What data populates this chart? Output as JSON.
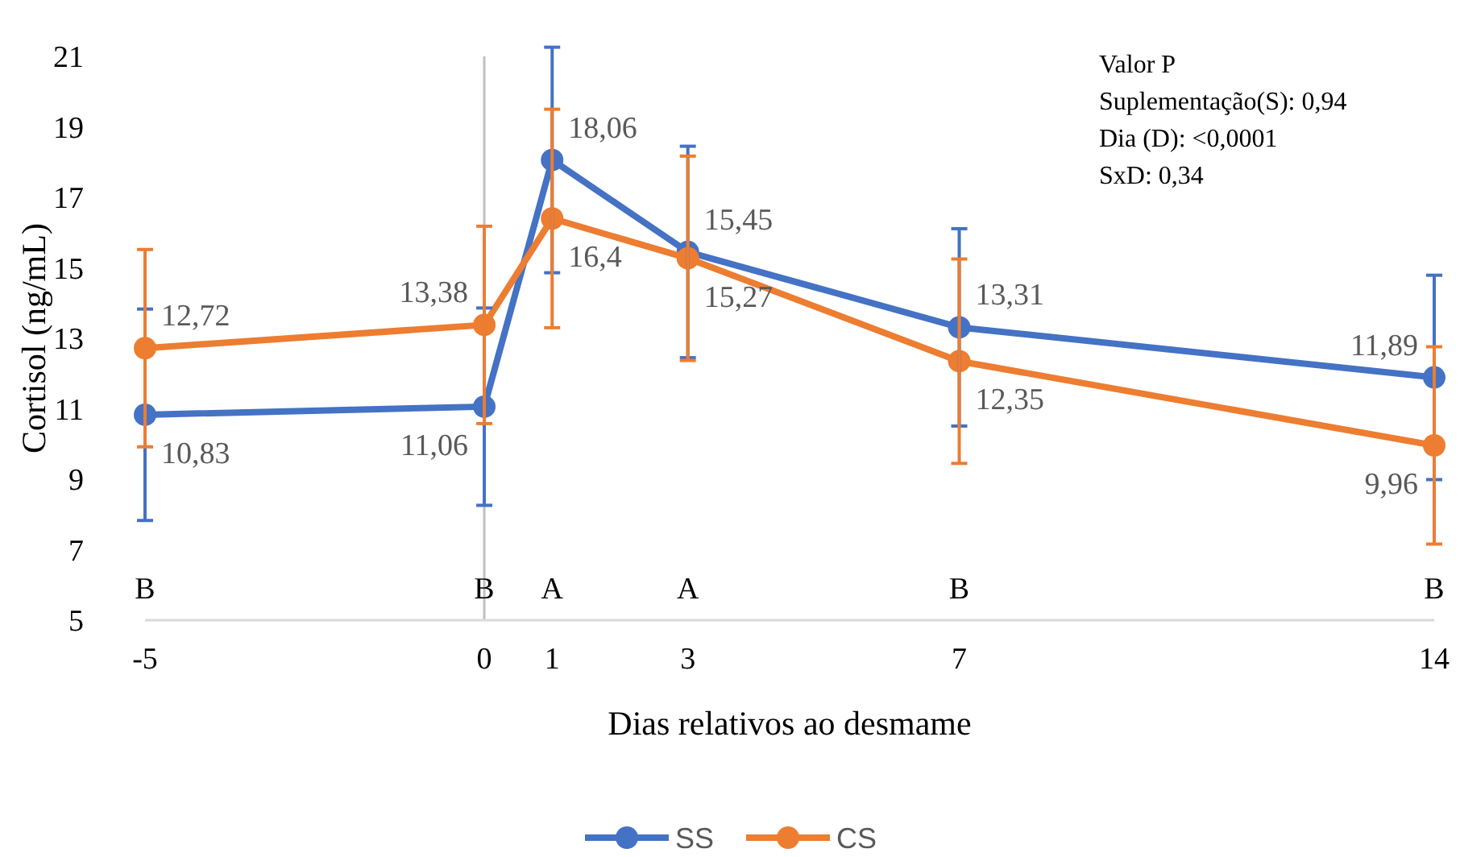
{
  "chart_data": {
    "type": "line",
    "xlabel": "Dias relativos ao desmame",
    "ylabel": "Cortisol (ng/mL)",
    "x": [
      -5,
      0,
      1,
      3,
      7,
      14
    ],
    "series": [
      {
        "name": "SS",
        "color": "#4472c4",
        "values": [
          10.83,
          11.06,
          18.06,
          15.45,
          13.31,
          11.89
        ],
        "errors": [
          3,
          2.8,
          3.2,
          3,
          2.8,
          2.9
        ],
        "value_labels": [
          "10,83",
          "11,06",
          "18,06",
          "15,45",
          "13,31",
          "11,89"
        ]
      },
      {
        "name": "CS",
        "color": "#ed7d31",
        "values": [
          12.72,
          13.38,
          16.4,
          15.27,
          12.35,
          9.96
        ],
        "errors": [
          2.8,
          2.8,
          3.1,
          2.9,
          2.9,
          2.8
        ],
        "value_labels": [
          "12,72",
          "13,38",
          "16,4",
          "15,27",
          "12,35",
          "9,96"
        ]
      }
    ],
    "xlim": [
      -5,
      14
    ],
    "xticks": [
      -5,
      0,
      1,
      3,
      7,
      14
    ],
    "ylim": [
      5,
      21
    ],
    "yticks": [
      5,
      7,
      9,
      11,
      13,
      15,
      17,
      19,
      21
    ],
    "ref_lines": [
      {
        "axis": "x",
        "value": 0,
        "color": "#bfbfbf"
      }
    ],
    "annotations": [
      "B",
      "B",
      "A",
      "A",
      "B",
      "B",
      "Valor P",
      "Suplementação(S): 0,94",
      "Dia (D): <0,0001",
      "SxD: 0,34"
    ],
    "marker": "circle",
    "line_style": "solid",
    "legend": "bottom"
  }
}
